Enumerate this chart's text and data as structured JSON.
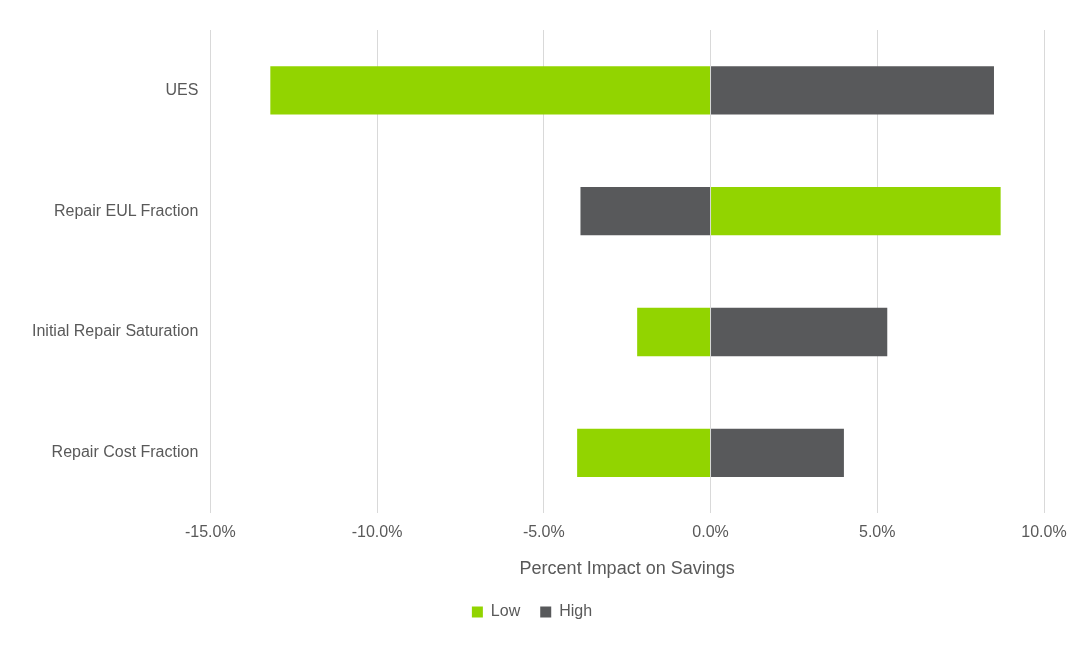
{
  "chart_data": {
    "type": "bar",
    "orientation": "horizontal",
    "stacked": true,
    "categories": [
      "UES",
      "Repair EUL Fraction",
      "Initial Repair Saturation",
      "Repair Cost Fraction"
    ],
    "series": [
      {
        "name": "Low",
        "color": "#92d400",
        "values": [
          -13.2,
          8.7,
          -2.2,
          -4.0
        ]
      },
      {
        "name": "High",
        "color": "#58595b",
        "values": [
          8.5,
          -3.9,
          5.3,
          4.0
        ]
      }
    ],
    "xlabel": "Percent Impact on Savings",
    "xlim": [
      -15,
      10
    ],
    "xticks": [
      {
        "value": -15,
        "label": "-15.0%"
      },
      {
        "value": -10,
        "label": "-10.0%"
      },
      {
        "value": -5,
        "label": "-5.0%"
      },
      {
        "value": 0,
        "label": "0.0%"
      },
      {
        "value": 5,
        "label": "5.0%"
      },
      {
        "value": 10,
        "label": "10.0%"
      }
    ],
    "grid": "x",
    "legend": "bottom"
  }
}
